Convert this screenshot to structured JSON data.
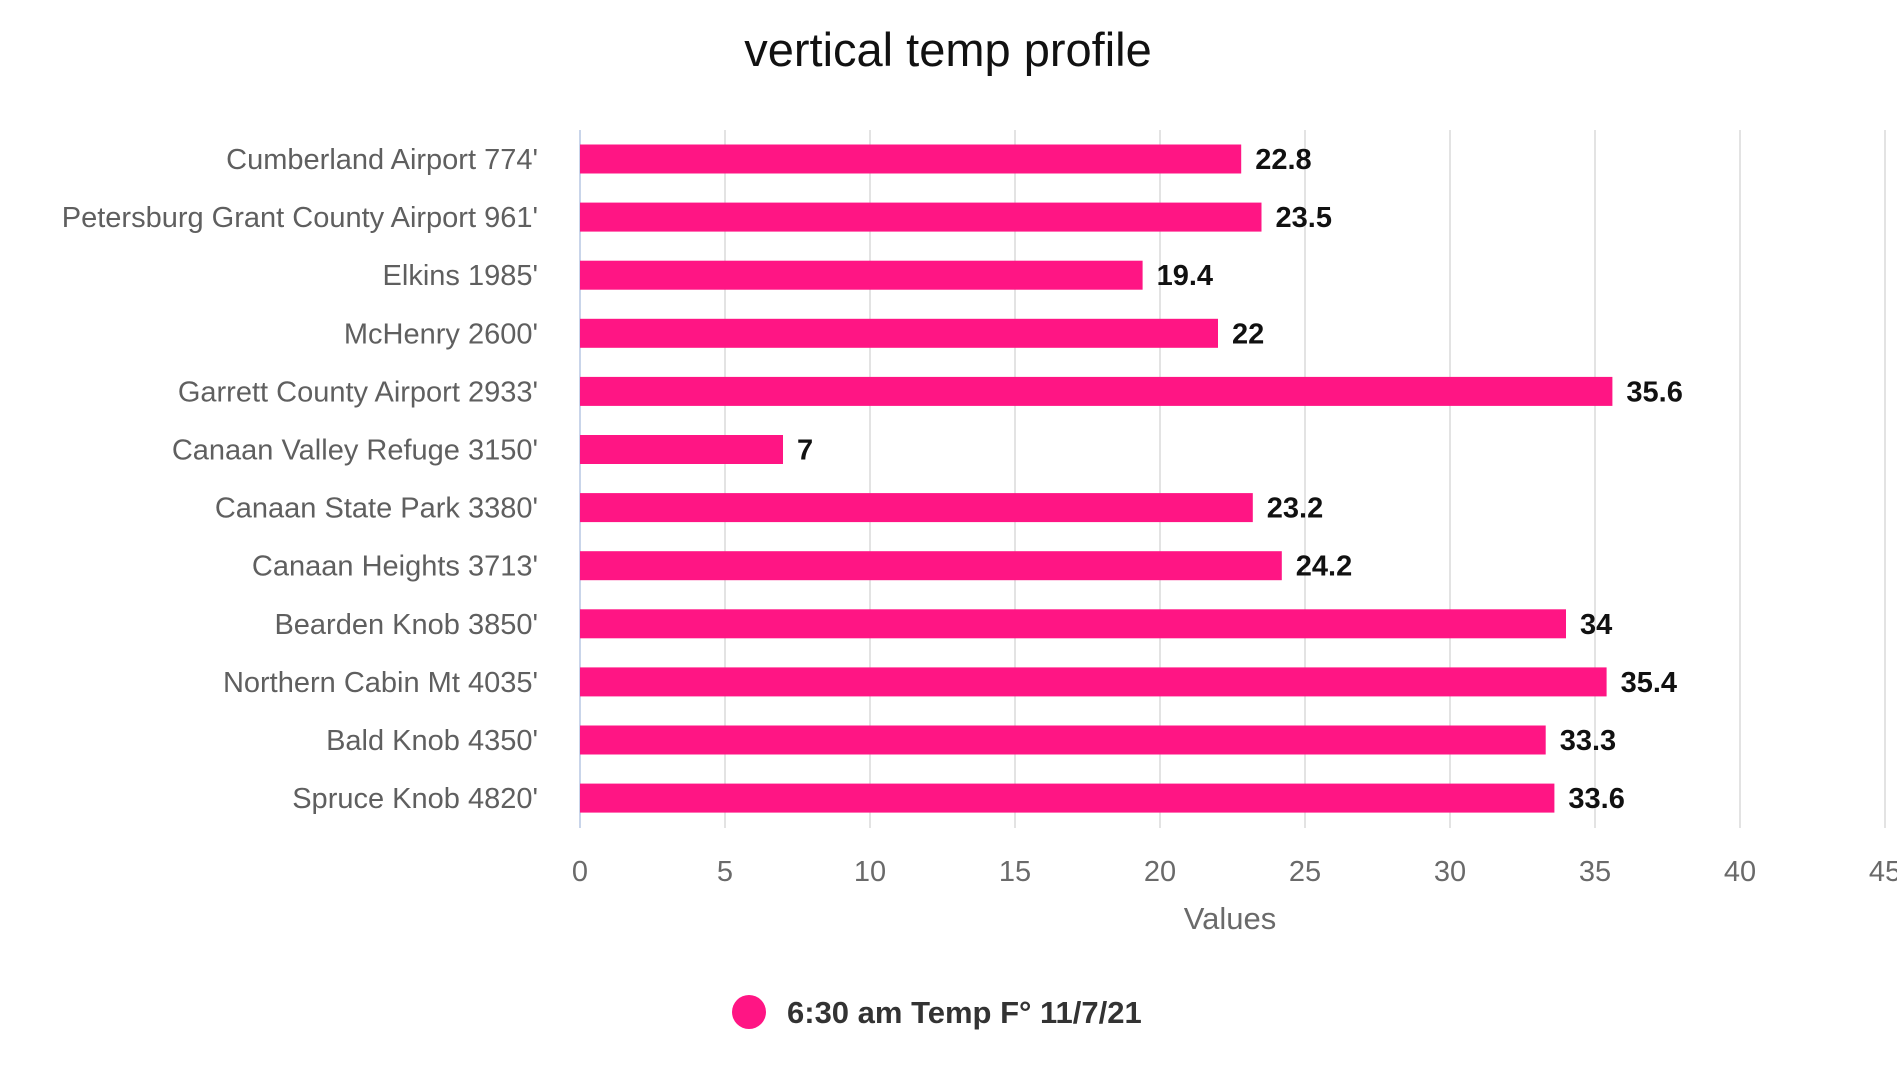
{
  "chart_data": {
    "type": "bar",
    "orientation": "horizontal",
    "title": "vertical temp profile",
    "xlabel": "Values",
    "ylabel": "",
    "xlim": [
      0,
      45
    ],
    "x_ticks": [
      0,
      5,
      10,
      15,
      20,
      25,
      30,
      35,
      40,
      45
    ],
    "grid": true,
    "legend_position": "bottom",
    "categories": [
      "Cumberland Airport 774'",
      "Petersburg Grant County Airport 961'",
      "Elkins 1985'",
      "McHenry 2600'",
      "Garrett County Airport 2933'",
      "Canaan Valley Refuge 3150'",
      "Canaan State Park 3380'",
      "Canaan Heights 3713'",
      "Bearden Knob 3850'",
      "Northern Cabin Mt 4035'",
      "Bald Knob 4350'",
      "Spruce Knob 4820'"
    ],
    "series": [
      {
        "name": "6:30 am Temp F° 11/7/21",
        "color": "#ff1584",
        "values": [
          22.8,
          23.5,
          19.4,
          22,
          35.6,
          7,
          23.2,
          24.2,
          34,
          35.4,
          33.3,
          33.6
        ]
      }
    ]
  }
}
